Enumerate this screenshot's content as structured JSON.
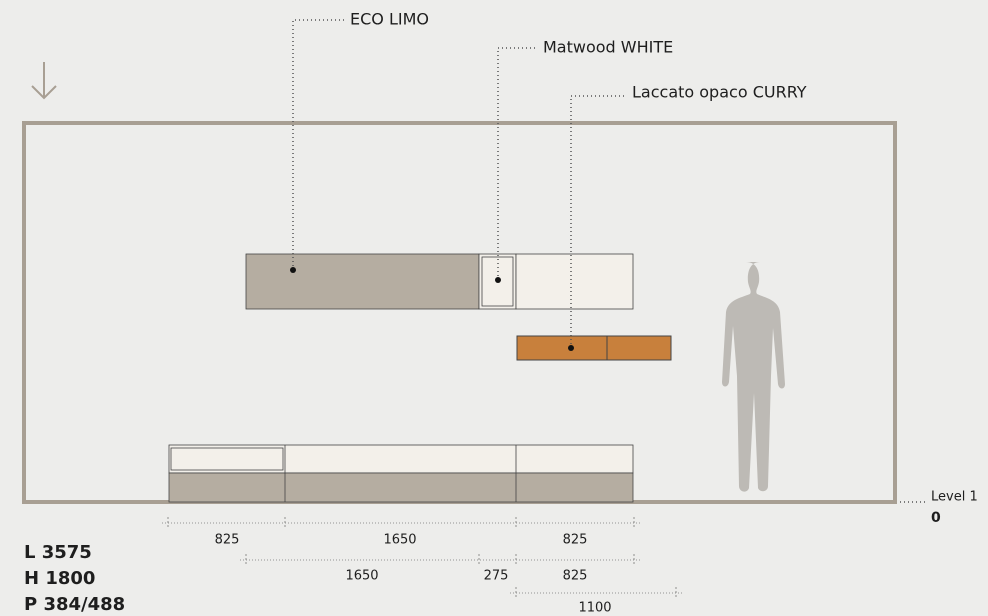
{
  "materials": [
    {
      "label": "ECO LIMO"
    },
    {
      "label": "Matwood WHITE"
    },
    {
      "label": "Laccato opaco CURRY"
    }
  ],
  "level": {
    "label": "Level 1",
    "value": "0"
  },
  "dimensions": {
    "row1": [
      "825",
      "1650",
      "825"
    ],
    "row2": [
      "1650",
      "275",
      "825"
    ],
    "row3": [
      "1100"
    ]
  },
  "specs": [
    "L 3575",
    "H 1800",
    "P 384/488"
  ]
}
